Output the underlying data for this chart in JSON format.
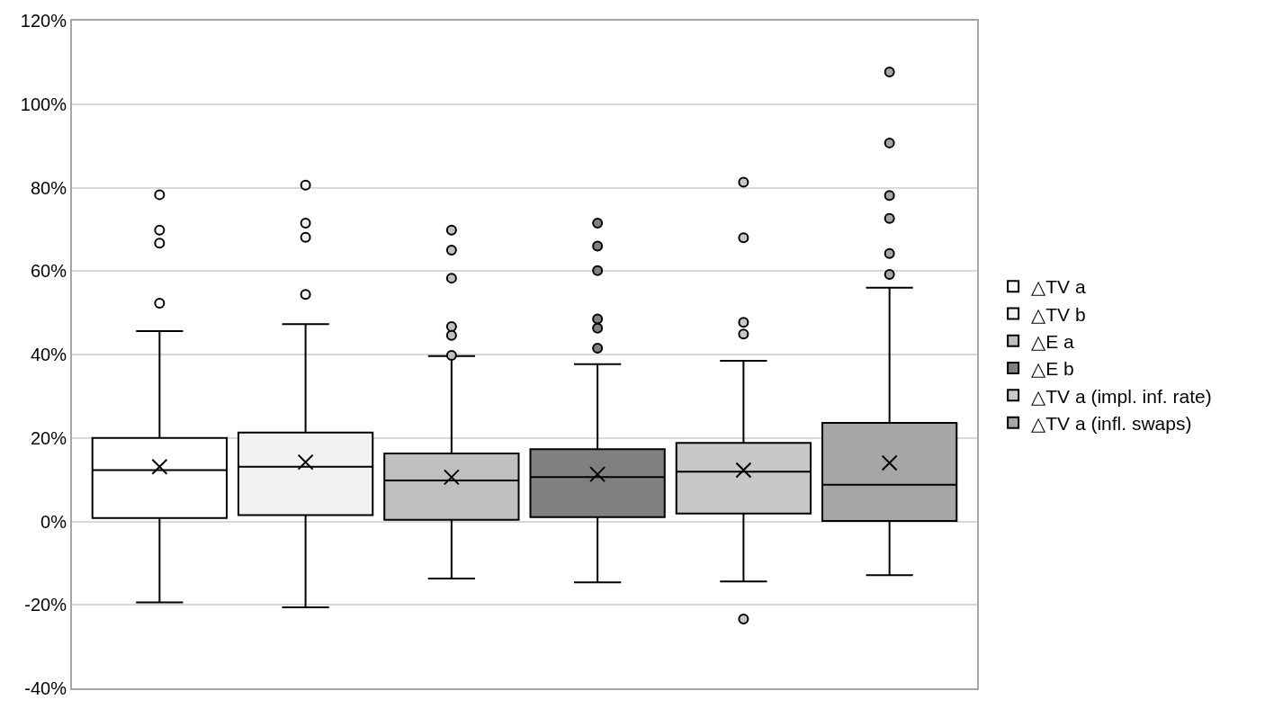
{
  "chart_data": {
    "type": "box",
    "categories": [
      null
    ],
    "ylim": [
      -40,
      120
    ],
    "yticks": [
      {
        "value": -40,
        "label": "-40%"
      },
      {
        "value": -20,
        "label": "-20%"
      },
      {
        "value": 0,
        "label": "0%"
      },
      {
        "value": 20,
        "label": "20%"
      },
      {
        "value": 40,
        "label": "40%"
      },
      {
        "value": 60,
        "label": "60%"
      },
      {
        "value": 80,
        "label": "80%"
      },
      {
        "value": 100,
        "label": "100%"
      },
      {
        "value": 120,
        "label": "120%"
      }
    ],
    "grid": "y",
    "legend": "right",
    "tick_labels": "y",
    "series": [
      {
        "name": "△TV a",
        "color": "#ffffff",
        "boxes": [
          {
            "low": -19.4,
            "q1": 0.8,
            "median": 12.3,
            "q3": 20,
            "high": 45.6,
            "mean": 13.1,
            "outliers": [
              78.3,
              69.8,
              66.7,
              52.3
            ]
          }
        ]
      },
      {
        "name": "△TV b",
        "color": "#f2f2f2",
        "boxes": [
          {
            "low": -20.6,
            "q1": 1.5,
            "median": 13.1,
            "q3": 21.3,
            "high": 47.3,
            "mean": 14.2,
            "outliers": [
              80.6,
              71.5,
              68.1,
              54.4
            ]
          }
        ]
      },
      {
        "name": "△E a",
        "color": "#bfbfbf",
        "boxes": [
          {
            "low": -13.7,
            "q1": 0.4,
            "median": 9.8,
            "q3": 16.3,
            "high": 39.6,
            "mean": 10.6,
            "outliers": [
              69.8,
              65,
              58.3,
              46.7,
              44.6,
              39.8
            ]
          }
        ]
      },
      {
        "name": "△E b",
        "color": "#808080",
        "boxes": [
          {
            "low": -14.6,
            "q1": 1,
            "median": 10.6,
            "q3": 17.3,
            "high": 37.7,
            "mean": 11.3,
            "outliers": [
              71.5,
              66,
              60.1,
              48.5,
              46.3,
              41.5
            ]
          }
        ]
      },
      {
        "name": "△TV a (impl. inf. rate)",
        "color": "#c8c8c8",
        "boxes": [
          {
            "low": -14.4,
            "q1": 1.9,
            "median": 11.9,
            "q3": 18.8,
            "high": 38.5,
            "mean": 12.3,
            "outliers": [
              81.3,
              68,
              47.7,
              44.9,
              -23.4
            ]
          }
        ]
      },
      {
        "name": "△TV a (infl. swaps)",
        "color": "#a6a6a6",
        "boxes": [
          {
            "low": -12.9,
            "q1": 0.1,
            "median": 8.8,
            "q3": 23.6,
            "high": 56,
            "mean": 14,
            "outliers": [
              107.7,
              90.7,
              78.1,
              72.6,
              64.2,
              59.2
            ]
          }
        ]
      }
    ]
  }
}
